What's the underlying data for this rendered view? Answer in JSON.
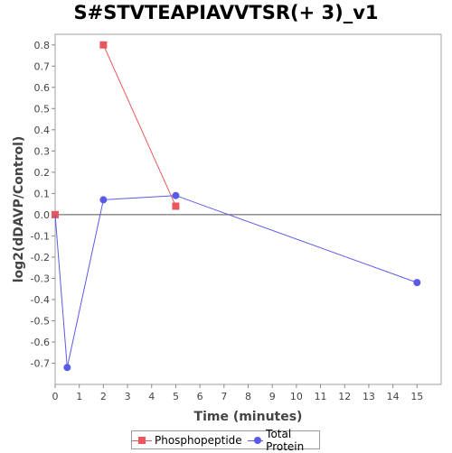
{
  "chart_data": {
    "type": "line",
    "title": "S#STVTEAPIAVVTSR(+ 3)_v1",
    "xlabel": "Time (minutes)",
    "ylabel": "log2(dDAVP/Control)",
    "xlim": [
      0,
      16
    ],
    "ylim": [
      -0.8,
      0.85
    ],
    "x_ticks": [
      0,
      1,
      2,
      3,
      4,
      5,
      6,
      7,
      8,
      9,
      10,
      11,
      12,
      13,
      14,
      15
    ],
    "y_ticks": [
      0.8,
      0.7,
      0.6,
      0.5,
      0.4,
      0.3,
      0.2,
      0.1,
      0.0,
      -0.1,
      -0.2,
      -0.3,
      -0.4,
      -0.5,
      -0.6,
      -0.7
    ],
    "x_tick_labels": [
      "0",
      "1",
      "2",
      "3",
      "4",
      "5",
      "6",
      "7",
      "8",
      "9",
      "10",
      "11",
      "12",
      "13",
      "14",
      "15"
    ],
    "y_tick_labels": [
      "0.8",
      "0.7",
      "0.6",
      "0.5",
      "0.4",
      "0.3",
      "0.2",
      "0.1",
      "0.0",
      "-0.1",
      "-0.2",
      "-0.3",
      "-0.4",
      "-0.5",
      "-0.6",
      "-0.7"
    ],
    "reference_line_y": 0,
    "series": [
      {
        "name": "Phosphopeptide",
        "color": "#e8585a",
        "marker": "square",
        "connect": [
          [
            2,
            0.8
          ],
          [
            5,
            0.04
          ]
        ],
        "points": [
          [
            0,
            0.0
          ],
          [
            2,
            0.8
          ],
          [
            5,
            0.04
          ]
        ]
      },
      {
        "name": "Total Protein",
        "color": "#5a5ae8",
        "marker": "circle",
        "connect": [
          [
            0,
            0.0
          ],
          [
            0.5,
            -0.72
          ],
          [
            2,
            0.07
          ],
          [
            5,
            0.09
          ],
          [
            15,
            -0.32
          ]
        ],
        "points": [
          [
            0.5,
            -0.72
          ],
          [
            2,
            0.07
          ],
          [
            5,
            0.09
          ],
          [
            15,
            -0.32
          ]
        ]
      }
    ],
    "legend_position": "bottom"
  }
}
